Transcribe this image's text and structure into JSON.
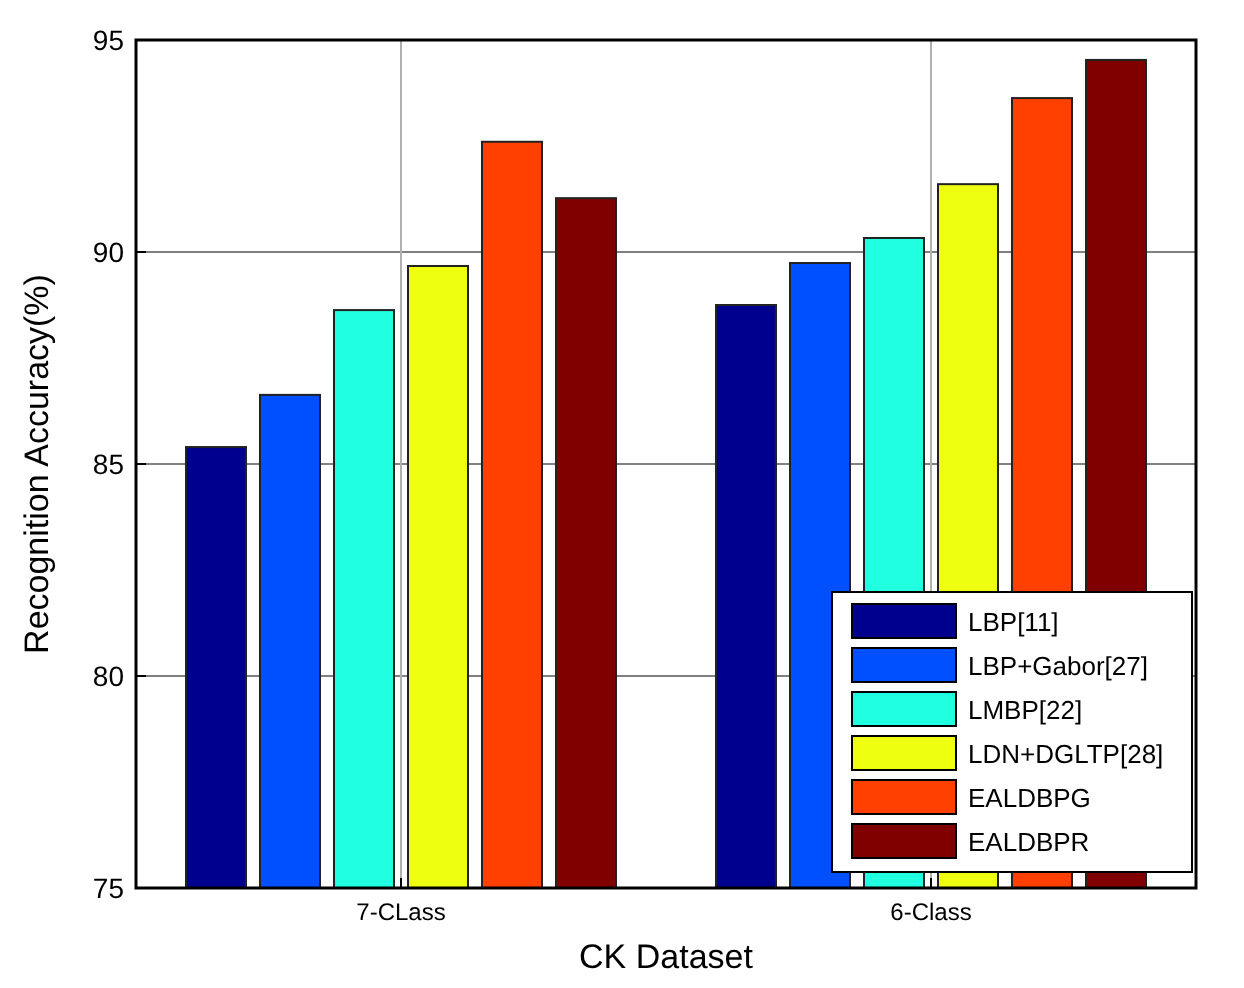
{
  "chart_data": {
    "type": "bar",
    "xlabel": "CK Dataset",
    "ylabel": "Recognition Accuracy(%)",
    "categories": [
      "7-CLass",
      "6-Class"
    ],
    "series": [
      {
        "name": "LBP[11]",
        "color": "#00008f",
        "values": [
          85.4,
          88.75
        ]
      },
      {
        "name": "LBP+Gabor[27]",
        "color": "#0050ff",
        "values": [
          86.63,
          89.74
        ]
      },
      {
        "name": "LMBP[22]",
        "color": "#20ffdf",
        "values": [
          88.63,
          90.33
        ]
      },
      {
        "name": "LDN+DGLTP[28]",
        "color": "#efff10",
        "values": [
          89.67,
          91.6
        ]
      },
      {
        "name": "EALDBPG",
        "color": "#ff4000",
        "values": [
          92.6,
          93.63
        ]
      },
      {
        "name": "EALDBPR",
        "color": "#800000",
        "values": [
          91.27,
          94.53
        ]
      }
    ],
    "ylim": [
      75,
      95
    ],
    "yticks": [
      75,
      80,
      85,
      90,
      95
    ],
    "grid": true,
    "legend": "bottom right"
  }
}
